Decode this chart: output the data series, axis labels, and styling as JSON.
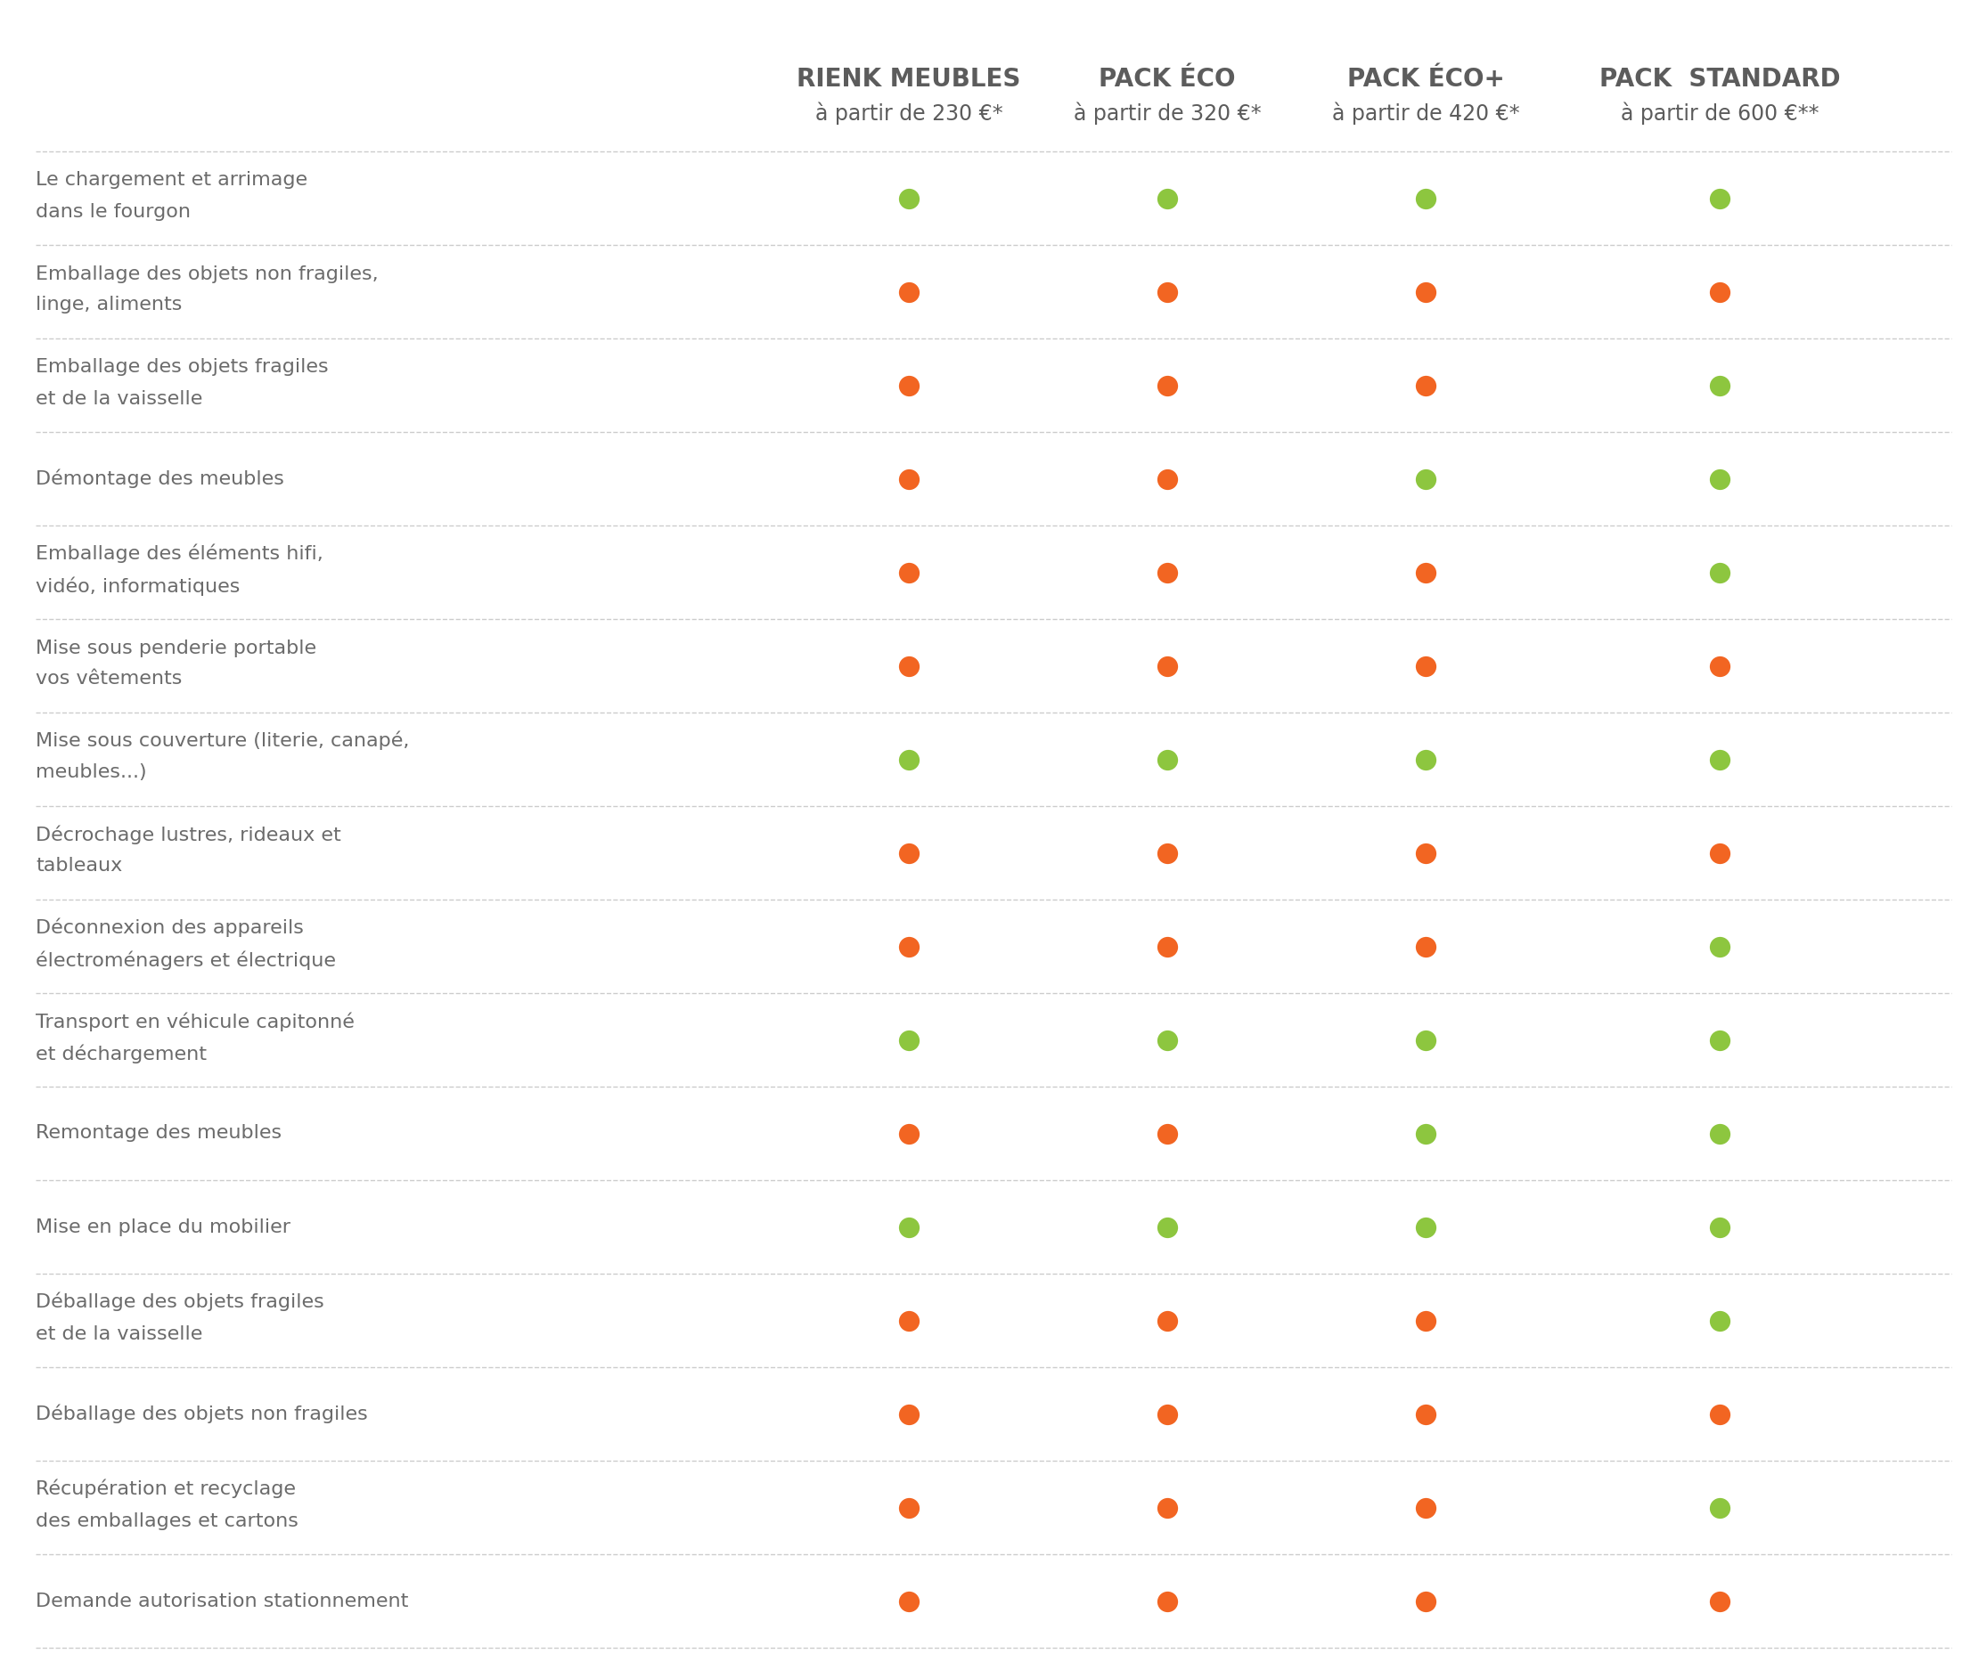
{
  "background_color": "#ffffff",
  "text_color": "#6b6b6b",
  "header_color": "#5c5c5c",
  "green_color": "#8dc63f",
  "orange_color": "#f26522",
  "separator_color": "#cccccc",
  "col_headers_line1": [
    "RIENK MEUBLES",
    "PACK ÉCO",
    "PACK ÉCO+",
    "PACK  STANDARD"
  ],
  "col_headers_line2": [
    "à partir de 230 €*",
    "à partir de 320 €*",
    "à partir de 420 €*",
    "à partir de 600 €**"
  ],
  "rows": [
    {
      "label": "Le chargement et arrimage\ndans le fourgon",
      "dots": [
        "G",
        "G",
        "G",
        "G"
      ]
    },
    {
      "label": "Emballage des objets non fragiles,\nlinge, aliments",
      "dots": [
        "O",
        "O",
        "O",
        "O"
      ]
    },
    {
      "label": "Emballage des objets fragiles\net de la vaisselle",
      "dots": [
        "O",
        "O",
        "O",
        "G"
      ]
    },
    {
      "label": "Démontage des meubles",
      "dots": [
        "O",
        "O",
        "G",
        "G"
      ]
    },
    {
      "label": "Emballage des éléments hifi,\nvidéo, informatiques",
      "dots": [
        "O",
        "O",
        "O",
        "G"
      ]
    },
    {
      "label": "Mise sous penderie portable\nvos vêtements",
      "dots": [
        "O",
        "O",
        "O",
        "O"
      ]
    },
    {
      "label": "Mise sous couverture (literie, canapé,\nmeubles...)",
      "dots": [
        "G",
        "G",
        "G",
        "G"
      ]
    },
    {
      "label": "Décrochage lustres, rideaux et\ntableaux",
      "dots": [
        "O",
        "O",
        "O",
        "O"
      ]
    },
    {
      "label": "Déconnexion des appareils\nélectroménagers et électrique",
      "dots": [
        "O",
        "O",
        "O",
        "G"
      ]
    },
    {
      "label": "Transport en véhicule capitonné\net déchargement",
      "dots": [
        "G",
        "G",
        "G",
        "G"
      ]
    },
    {
      "label": "Remontage des meubles",
      "dots": [
        "O",
        "O",
        "G",
        "G"
      ]
    },
    {
      "label": "Mise en place du mobilier",
      "dots": [
        "G",
        "G",
        "G",
        "G"
      ]
    },
    {
      "label": "Déballage des objets fragiles\net de la vaisselle",
      "dots": [
        "O",
        "O",
        "O",
        "G"
      ]
    },
    {
      "label": "Déballage des objets non fragiles",
      "dots": [
        "O",
        "O",
        "O",
        "O"
      ]
    },
    {
      "label": "Récupération et recyclage\ndes emballages et cartons",
      "dots": [
        "O",
        "O",
        "O",
        "G"
      ]
    },
    {
      "label": "Demande autorisation stationnement",
      "dots": [
        "O",
        "O",
        "O",
        "O"
      ]
    }
  ]
}
